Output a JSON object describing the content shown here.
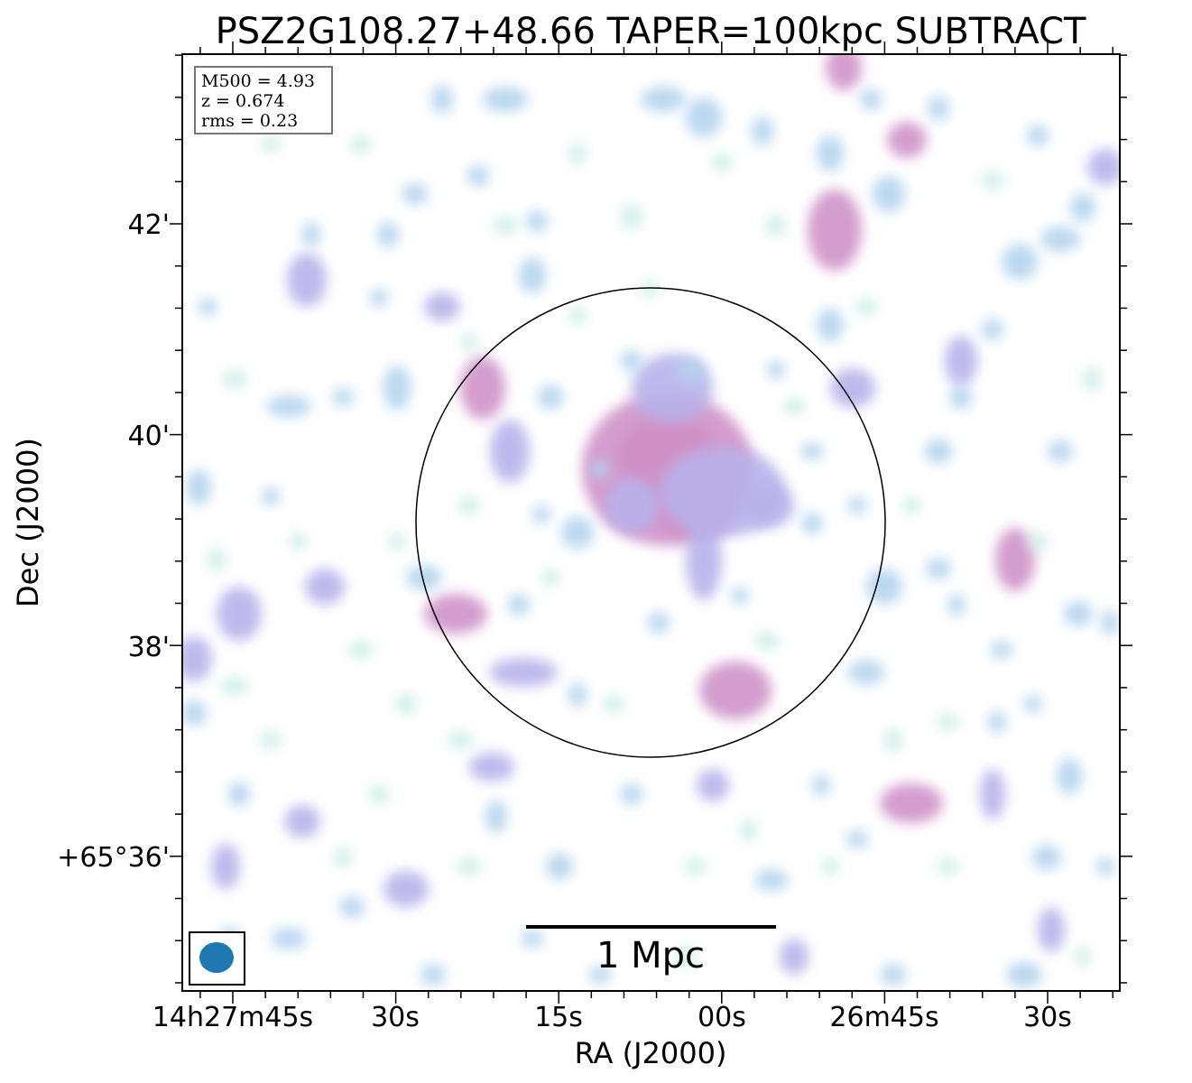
{
  "chart_data": {
    "type": "heatmap",
    "title": "PSZ2G108.27+48.66 TAPER=100kpc SUBTRACT",
    "xlabel": "RA (J2000)",
    "ylabel": "Dec (J2000)",
    "x_ticks": [
      "14h27m45s",
      "30s",
      "15s",
      "00s",
      "26m45s",
      "30s"
    ],
    "y_ticks": [
      "42'",
      "40'",
      "38'",
      "+65°36'"
    ],
    "info_box": [
      "M500 = 4.93",
      "z = 0.674",
      "rms = 0.23"
    ],
    "scalebar_label": "1 Mpc",
    "colormap": [
      "#ffffff",
      "#cfeee6",
      "#b4d4ee",
      "#b8b2ea",
      "#cf93c9",
      "#d873a3",
      "#c97a6e"
    ],
    "features": {
      "central_circle": true,
      "beam_ellipse_color": "#1f77b4"
    }
  }
}
